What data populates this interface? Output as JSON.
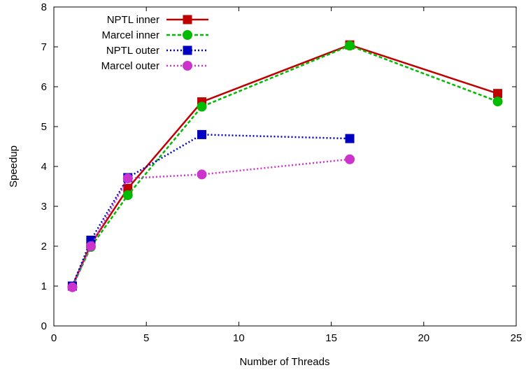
{
  "chart_data": {
    "type": "line",
    "title": "",
    "xlabel": "Number of Threads",
    "ylabel": "Speedup",
    "xlim": [
      0,
      25
    ],
    "ylim": [
      0,
      8
    ],
    "x_ticks": [
      "0",
      "5",
      "10",
      "15",
      "20",
      "25"
    ],
    "y_ticks": [
      "0",
      "1",
      "2",
      "3",
      "4",
      "5",
      "6",
      "7",
      "8"
    ],
    "grid": false,
    "legend_position": "top-left",
    "series": [
      {
        "name": "NPTL inner",
        "color": "#c00000",
        "line_style": "solid",
        "marker": "square",
        "x": [
          1,
          2,
          4,
          8,
          16,
          24
        ],
        "y": [
          1.0,
          2.05,
          3.45,
          5.62,
          7.05,
          5.83
        ]
      },
      {
        "name": "Marcel inner",
        "color": "#00bb00",
        "line_style": "dashed",
        "marker": "circle",
        "x": [
          1,
          2,
          4,
          8,
          16,
          24
        ],
        "y": [
          0.98,
          1.98,
          3.28,
          5.5,
          7.03,
          5.63
        ]
      },
      {
        "name": "NPTL outer",
        "color": "#0000c0",
        "line_style": "dotted",
        "marker": "square",
        "x": [
          1,
          2,
          4,
          8,
          16
        ],
        "y": [
          1.0,
          2.15,
          3.72,
          4.8,
          4.7
        ]
      },
      {
        "name": "Marcel outer",
        "color": "#cc33cc",
        "line_style": "dotted",
        "marker": "circle",
        "x": [
          1,
          2,
          4,
          8,
          16
        ],
        "y": [
          0.97,
          2.0,
          3.7,
          3.8,
          4.18
        ]
      }
    ]
  }
}
